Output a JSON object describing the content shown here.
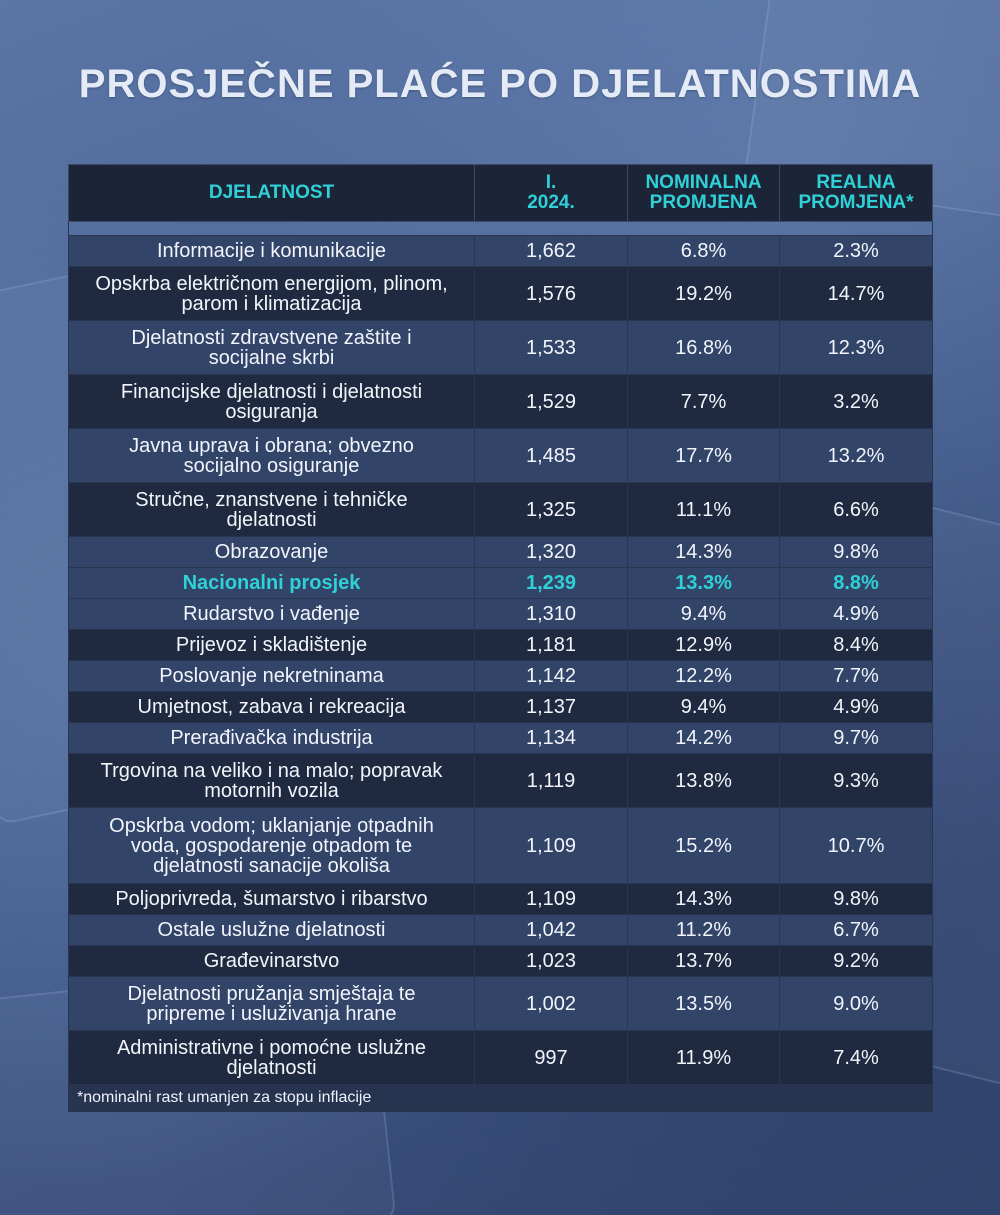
{
  "title": "PROSJEČNE PLAĆE PO DJELATNOSTIMA",
  "colors": {
    "accent": "#2fd0d6",
    "header_bg": "#1c2538",
    "row_dark": "#1f2a40",
    "row_light": "#324468"
  },
  "table": {
    "headers": {
      "activity": "DJELATNOST",
      "month_line1": "I.",
      "month_line2": "2024.",
      "nominal_line1": "NOMINALNA",
      "nominal_line2": "PROMJENA",
      "real_line1": "REALNA",
      "real_line2": "PROMJENA*"
    },
    "rows": [
      {
        "activity_lines": [
          "Informacije i komunikacije"
        ],
        "wage": "1,662",
        "nominal": "6.8%",
        "real": "2.3%"
      },
      {
        "activity_lines": [
          "Opskrba električnom energijom, plinom,",
          "parom i klimatizacija"
        ],
        "wage": "1,576",
        "nominal": "19.2%",
        "real": "14.7%"
      },
      {
        "activity_lines": [
          "Djelatnosti zdravstvene zaštite i",
          "socijalne skrbi"
        ],
        "wage": "1,533",
        "nominal": "16.8%",
        "real": "12.3%"
      },
      {
        "activity_lines": [
          "Financijske djelatnosti i djelatnosti",
          "osiguranja"
        ],
        "wage": "1,529",
        "nominal": "7.7%",
        "real": "3.2%"
      },
      {
        "activity_lines": [
          "Javna uprava i obrana; obvezno",
          "socijalno osiguranje"
        ],
        "wage": "1,485",
        "nominal": "17.7%",
        "real": "13.2%"
      },
      {
        "activity_lines": [
          "Stručne, znanstvene i tehničke",
          "djelatnosti"
        ],
        "wage": "1,325",
        "nominal": "11.1%",
        "real": "6.6%"
      },
      {
        "activity_lines": [
          "Obrazovanje"
        ],
        "wage": "1,320",
        "nominal": "14.3%",
        "real": "9.8%"
      },
      {
        "activity_lines": [
          "Nacionalni prosjek"
        ],
        "wage": "1,239",
        "nominal": "13.3%",
        "real": "8.8%"
      },
      {
        "activity_lines": [
          "Rudarstvo i vađenje"
        ],
        "wage": "1,310",
        "nominal": "9.4%",
        "real": "4.9%"
      },
      {
        "activity_lines": [
          "Prijevoz i skladištenje"
        ],
        "wage": "1,181",
        "nominal": "12.9%",
        "real": "8.4%"
      },
      {
        "activity_lines": [
          "Poslovanje nekretninama"
        ],
        "wage": "1,142",
        "nominal": "12.2%",
        "real": "7.7%"
      },
      {
        "activity_lines": [
          "Umjetnost, zabava i rekreacija"
        ],
        "wage": "1,137",
        "nominal": "9.4%",
        "real": "4.9%"
      },
      {
        "activity_lines": [
          "Prerađivačka industrija"
        ],
        "wage": "1,134",
        "nominal": "14.2%",
        "real": "9.7%"
      },
      {
        "activity_lines": [
          "Trgovina na veliko i na malo; popravak",
          "motornih vozila"
        ],
        "wage": "1,119",
        "nominal": "13.8%",
        "real": "9.3%"
      },
      {
        "activity_lines": [
          "Opskrba vodom; uklanjanje otpadnih",
          "voda, gospodarenje otpadom te",
          "djelatnosti sanacije okoliša"
        ],
        "wage": "1,109",
        "nominal": "15.2%",
        "real": "10.7%"
      },
      {
        "activity_lines": [
          "Poljoprivreda, šumarstvo i ribarstvo"
        ],
        "wage": "1,109",
        "nominal": "14.3%",
        "real": "9.8%"
      },
      {
        "activity_lines": [
          "Ostale uslužne djelatnosti"
        ],
        "wage": "1,042",
        "nominal": "11.2%",
        "real": "6.7%"
      },
      {
        "activity_lines": [
          "Građevinarstvo"
        ],
        "wage": "1,023",
        "nominal": "13.7%",
        "real": "9.2%"
      },
      {
        "activity_lines": [
          "Djelatnosti pružanja smještaja te",
          "pripreme i usluživanja hrane"
        ],
        "wage": "1,002",
        "nominal": "13.5%",
        "real": "9.0%"
      },
      {
        "activity_lines": [
          "Administrativne i pomoćne uslužne",
          "djelatnosti"
        ],
        "wage": "997",
        "nominal": "11.9%",
        "real": "7.4%"
      }
    ],
    "highlight_row": "Nacionalni prosjek",
    "footnote": "*nominalni rast umanjen za stopu inflacije"
  }
}
